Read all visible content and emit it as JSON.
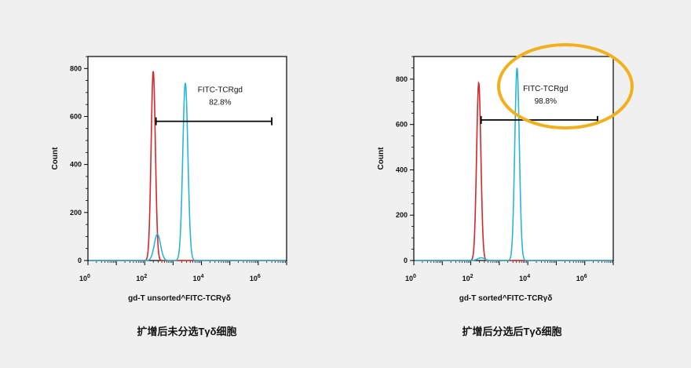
{
  "chart_data": [
    {
      "type": "line",
      "caption": "扩增后未分选Tγδ细胞",
      "xlabel": "gd-T unsorted^FITC-TCRγδ",
      "ylabel": "Count",
      "x_scale": "log",
      "xlim": [
        1,
        10000000
      ],
      "ylim": [
        0,
        850
      ],
      "x_ticks": [
        {
          "value": 1,
          "base": "10",
          "exp": "0"
        },
        {
          "value": 100,
          "base": "10",
          "exp": "2"
        },
        {
          "value": 10000,
          "base": "10",
          "exp": "4"
        },
        {
          "value": 1000000,
          "base": "10",
          "exp": "6"
        }
      ],
      "y_ticks": [
        0,
        200,
        400,
        600,
        800
      ],
      "gate": {
        "label": "FITC-TCRgd",
        "percent": "82.8%",
        "x_start": 250,
        "x_end": 3000000,
        "y": 580
      },
      "series": [
        {
          "color": "#d62728",
          "peaks": [
            {
              "center": 200,
              "height": 790,
              "width": 0.075
            }
          ]
        },
        {
          "color": "#29b6d6",
          "peaks": [
            {
              "center": 280,
              "height": 110,
              "width": 0.11
            },
            {
              "center": 2700,
              "height": 740,
              "width": 0.09
            }
          ]
        }
      ]
    },
    {
      "type": "line",
      "caption": "扩增后分选后Tγδ细胞",
      "xlabel": "gd-T sorted^FITC-TCRγδ",
      "ylabel": "Count",
      "x_scale": "log",
      "xlim": [
        1,
        10000000
      ],
      "ylim": [
        0,
        900
      ],
      "x_ticks": [
        {
          "value": 1,
          "base": "10",
          "exp": "0"
        },
        {
          "value": 100,
          "base": "10",
          "exp": "2"
        },
        {
          "value": 10000,
          "base": "10",
          "exp": "4"
        },
        {
          "value": 1000000,
          "base": "10",
          "exp": "6"
        }
      ],
      "y_ticks": [
        0,
        200,
        400,
        600,
        800
      ],
      "gate": {
        "label": "FITC-TCRgd",
        "percent": "98.8%",
        "x_start": 230,
        "x_end": 2800000,
        "y": 620
      },
      "series": [
        {
          "color": "#d62728",
          "peaks": [
            {
              "center": 190,
              "height": 785,
              "width": 0.075
            }
          ]
        },
        {
          "color": "#29b6d6",
          "peaks": [
            {
              "center": 230,
              "height": 12,
              "width": 0.12
            },
            {
              "center": 4200,
              "height": 850,
              "width": 0.08
            }
          ]
        }
      ]
    }
  ],
  "highlight_color": "#f2b01e"
}
